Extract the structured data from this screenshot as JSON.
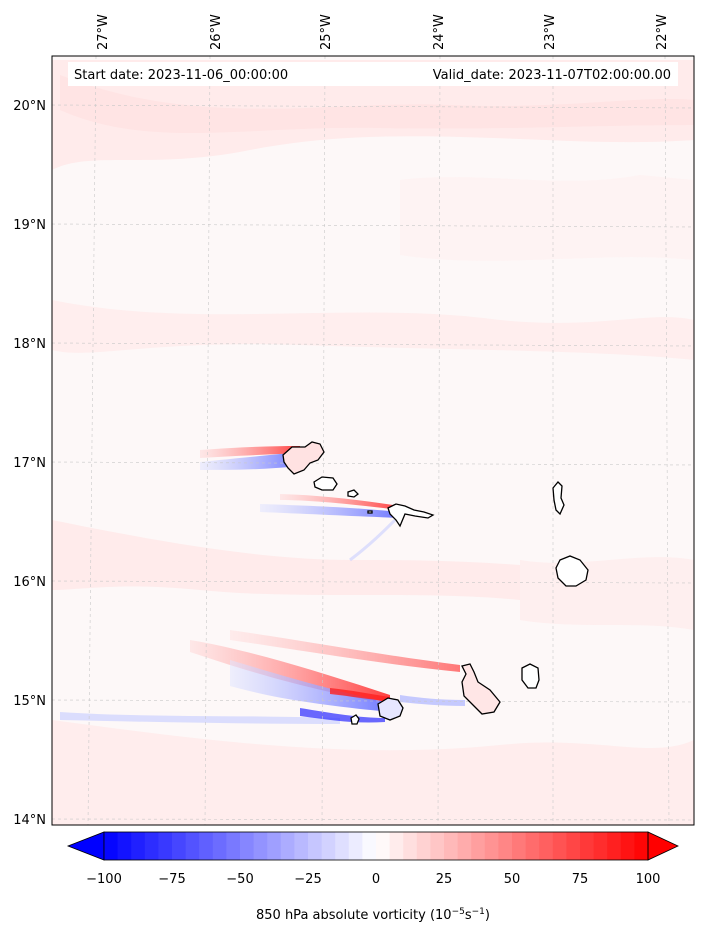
{
  "header": {
    "start_date": "Start date: 2023-11-06_00:00:00",
    "valid_date": "Valid_date: 2023-11-07T02:00:00.00"
  },
  "map": {
    "projection": "lat-lon",
    "lon_range": [
      -27.35,
      -21.75
    ],
    "lat_range": [
      13.95,
      20.45
    ],
    "lon_ticks": [
      {
        "value": -27,
        "label": "27°W"
      },
      {
        "value": -26,
        "label": "26°W"
      },
      {
        "value": -25,
        "label": "25°W"
      },
      {
        "value": -24,
        "label": "24°W"
      },
      {
        "value": -23,
        "label": "23°W"
      },
      {
        "value": -22,
        "label": "22°W"
      }
    ],
    "lat_ticks": [
      {
        "value": 20,
        "label": "20°N"
      },
      {
        "value": 19,
        "label": "19°N"
      },
      {
        "value": 18,
        "label": "18°N"
      },
      {
        "value": 17,
        "label": "17°N"
      },
      {
        "value": 16,
        "label": "16°N"
      },
      {
        "value": 15,
        "label": "15°N"
      },
      {
        "value": 14,
        "label": "14°N"
      }
    ],
    "gridlines": true,
    "field": "850 hPa absolute vorticity",
    "islands": [
      "Santo Antão",
      "São Vicente",
      "Santa Luzia",
      "São Nicolau",
      "Sal",
      "Boa Vista",
      "Santiago",
      "Maio",
      "Fogo",
      "Brava"
    ]
  },
  "colorbar": {
    "min": -100,
    "max": 100,
    "extend": "both",
    "ticks": [
      "−100",
      "−75",
      "−50",
      "−25",
      "0",
      "25",
      "50",
      "75",
      "100"
    ],
    "label": "850 hPa absolute vorticity (10",
    "label_exp1": "−5",
    "label_mid": "s",
    "label_exp2": "−1",
    "label_end": ")",
    "colors": {
      "negative": "#0000ff",
      "zero": "#ffffff",
      "positive": "#ff0000"
    }
  }
}
